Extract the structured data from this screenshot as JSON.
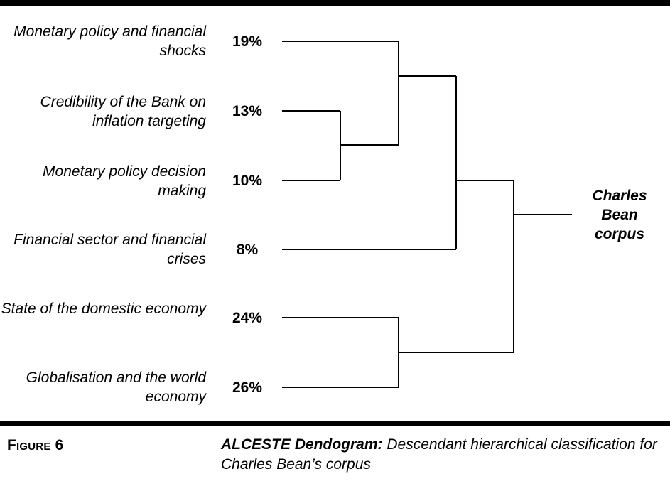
{
  "clusters": [
    {
      "label": "Monetary policy and financial shocks",
      "pct": "19%"
    },
    {
      "label": "Credibility of the Bank on inflation targeting",
      "pct": "13%"
    },
    {
      "label": "Monetary policy decision making",
      "pct": "10%"
    },
    {
      "label": "Financial sector and financial crises",
      "pct": "8%"
    },
    {
      "label": "State of the domestic economy",
      "pct": "24%"
    },
    {
      "label": "Globalisation and the world economy",
      "pct": "26%"
    }
  ],
  "root": {
    "label": "Charles Bean corpus"
  },
  "figure": {
    "number": "Figure 6",
    "caption_title": "ALCESTE Dendogram:",
    "caption_text": " Descendant hierarchical classification for Charles Bean’s corpus"
  }
}
